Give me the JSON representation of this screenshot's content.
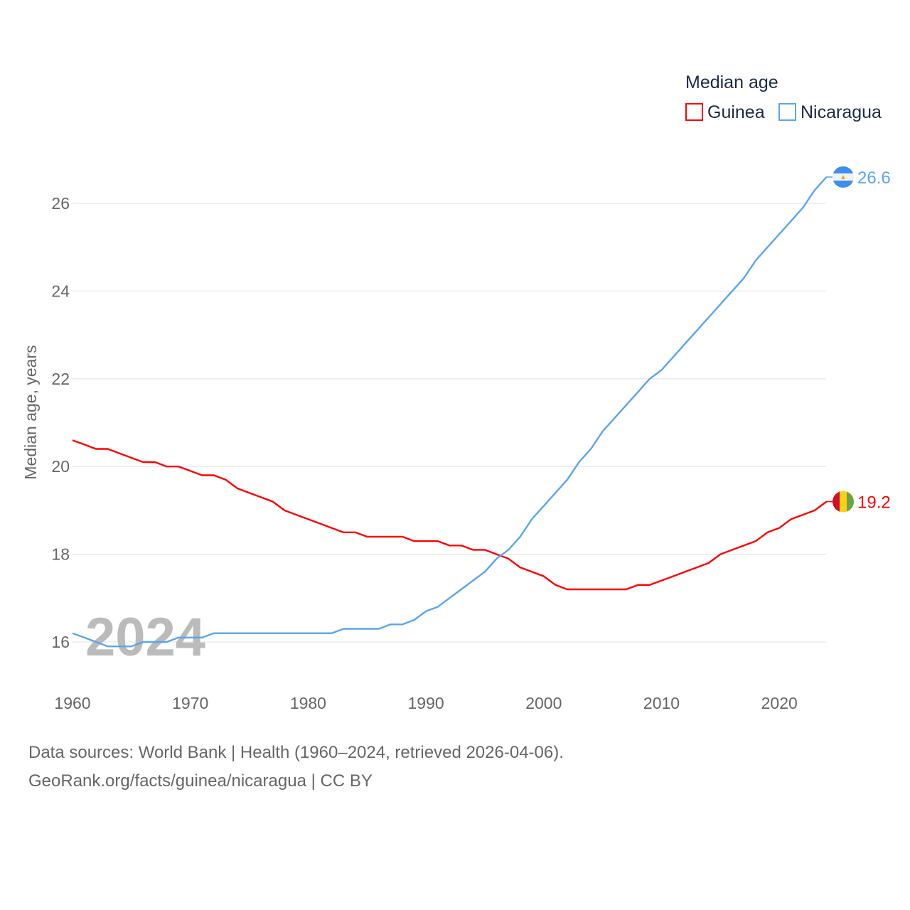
{
  "chart_data": {
    "type": "line",
    "title": "",
    "xlabel": "",
    "ylabel": "Median age, years",
    "xlim": [
      1960,
      2024
    ],
    "ylim": [
      15.0,
      26.6
    ],
    "grid": true,
    "x_ticks": [
      "1960",
      "1970",
      "1980",
      "1990",
      "2000",
      "2010",
      "2020"
    ],
    "y_ticks": [
      "16",
      "18",
      "20",
      "22",
      "24",
      "26"
    ],
    "legend": {
      "title": "Median age",
      "placement": "top-right",
      "entries": [
        "Guinea",
        "Nicaragua"
      ]
    },
    "year_watermark": "2024",
    "x": [
      1960,
      1961,
      1962,
      1963,
      1964,
      1965,
      1966,
      1967,
      1968,
      1969,
      1970,
      1971,
      1972,
      1973,
      1974,
      1975,
      1976,
      1977,
      1978,
      1979,
      1980,
      1981,
      1982,
      1983,
      1984,
      1985,
      1986,
      1987,
      1988,
      1989,
      1990,
      1991,
      1992,
      1993,
      1994,
      1995,
      1996,
      1997,
      1998,
      1999,
      2000,
      2001,
      2002,
      2003,
      2004,
      2005,
      2006,
      2007,
      2008,
      2009,
      2010,
      2011,
      2012,
      2013,
      2014,
      2015,
      2016,
      2017,
      2018,
      2019,
      2020,
      2021,
      2022,
      2023,
      2024
    ],
    "series": [
      {
        "name": "Guinea",
        "color": "#ff0000",
        "end_label": "19.2",
        "values": [
          20.6,
          20.5,
          20.4,
          20.4,
          20.3,
          20.2,
          20.1,
          20.1,
          20.0,
          20.0,
          19.9,
          19.8,
          19.8,
          19.7,
          19.5,
          19.4,
          19.3,
          19.2,
          19.0,
          18.9,
          18.8,
          18.7,
          18.6,
          18.5,
          18.5,
          18.4,
          18.4,
          18.4,
          18.4,
          18.3,
          18.3,
          18.3,
          18.2,
          18.2,
          18.1,
          18.1,
          18.0,
          17.9,
          17.7,
          17.6,
          17.5,
          17.3,
          17.2,
          17.2,
          17.2,
          17.2,
          17.2,
          17.2,
          17.3,
          17.3,
          17.4,
          17.5,
          17.6,
          17.7,
          17.8,
          18.0,
          18.1,
          18.2,
          18.3,
          18.5,
          18.6,
          18.8,
          18.9,
          19.0,
          19.2
        ]
      },
      {
        "name": "Nicaragua",
        "color": "#5aa5ec",
        "end_label": "26.6",
        "values": [
          16.2,
          16.1,
          16.0,
          15.9,
          15.9,
          15.9,
          16.0,
          16.0,
          16.0,
          16.1,
          16.1,
          16.1,
          16.2,
          16.2,
          16.2,
          16.2,
          16.2,
          16.2,
          16.2,
          16.2,
          16.2,
          16.2,
          16.2,
          16.3,
          16.3,
          16.3,
          16.3,
          16.4,
          16.4,
          16.5,
          16.7,
          16.8,
          17.0,
          17.2,
          17.4,
          17.6,
          17.9,
          18.1,
          18.4,
          18.8,
          19.1,
          19.4,
          19.7,
          20.1,
          20.4,
          20.8,
          21.1,
          21.4,
          21.7,
          22.0,
          22.2,
          22.5,
          22.8,
          23.1,
          23.4,
          23.7,
          24.0,
          24.3,
          24.7,
          25.0,
          25.3,
          25.6,
          25.9,
          26.3,
          26.6
        ]
      }
    ]
  },
  "footer": {
    "line1": "Data sources: World Bank | Health (1960–2024, retrieved 2026-04-06).",
    "line2": "GeoRank.org/facts/guinea/nicaragua | CC BY"
  }
}
